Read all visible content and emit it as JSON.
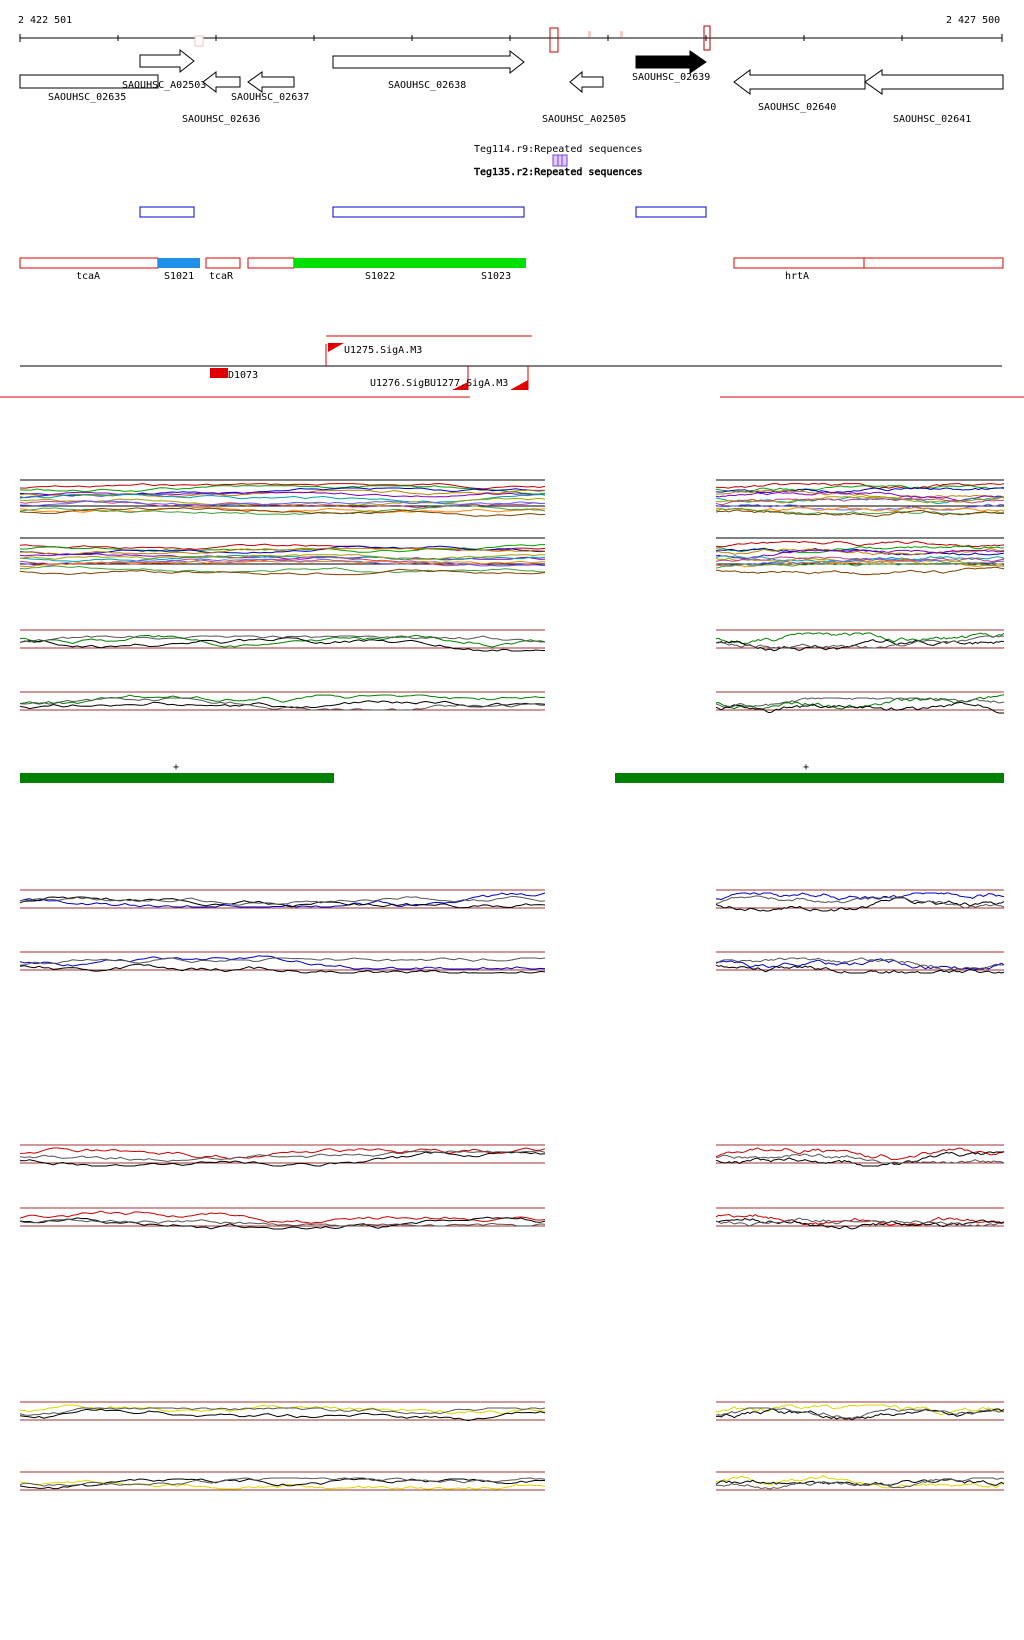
{
  "coords": {
    "start": "2 422 501",
    "end": "2 427 500"
  },
  "genes": [
    {
      "label": "SAOUHSC_02635",
      "dir": "none"
    },
    {
      "label": "SAOUHSC_A02503",
      "dir": "right"
    },
    {
      "label": "SAOUHSC_02636",
      "dir": "left"
    },
    {
      "label": "SAOUHSC_02637",
      "dir": "left"
    },
    {
      "label": "SAOUHSC_02638",
      "dir": "right"
    },
    {
      "label": "SAOUHSC_A02505",
      "dir": "left"
    },
    {
      "label": "SAOUHSC_02639",
      "dir": "right",
      "highlighted": true
    },
    {
      "label": "SAOUHSC_02640",
      "dir": "left"
    },
    {
      "label": "SAOUHSC_02641",
      "dir": "left"
    }
  ],
  "repeats": [
    {
      "label": "Teg114.r9:Repeated sequences"
    },
    {
      "label": "Teg135.r2:Repeated sequences"
    }
  ],
  "segments": [
    {
      "label": "tcaA"
    },
    {
      "label": "S1021"
    },
    {
      "label": "tcaR"
    },
    {
      "label": "S1022"
    },
    {
      "label": "S1023"
    },
    {
      "label": "hrtA"
    }
  ],
  "promoters": [
    {
      "label": "U1275.SigA.M3"
    },
    {
      "label": "D1073"
    },
    {
      "label": "U1276.SigB"
    },
    {
      "label": "U1277.SigA.M3"
    }
  ],
  "strand": {
    "left": "+",
    "right": "+"
  },
  "colors": {
    "gene_highlight": "#000000",
    "segment_border": "#e00000",
    "segment_green": "#00e000",
    "segment_blue": "#1e90e8",
    "repeat_box": "#0000cc",
    "expr_group_1": "#008000",
    "expr_group_2": "#0000cc",
    "expr_group_3": "#cc0000",
    "expr_group_4": "#d8d800",
    "threshold_line": "#a03030",
    "strand_bar": "#008000"
  },
  "icons": [
    "arrow-right-icon",
    "arrow-left-icon",
    "promoter-flag-icon"
  ]
}
